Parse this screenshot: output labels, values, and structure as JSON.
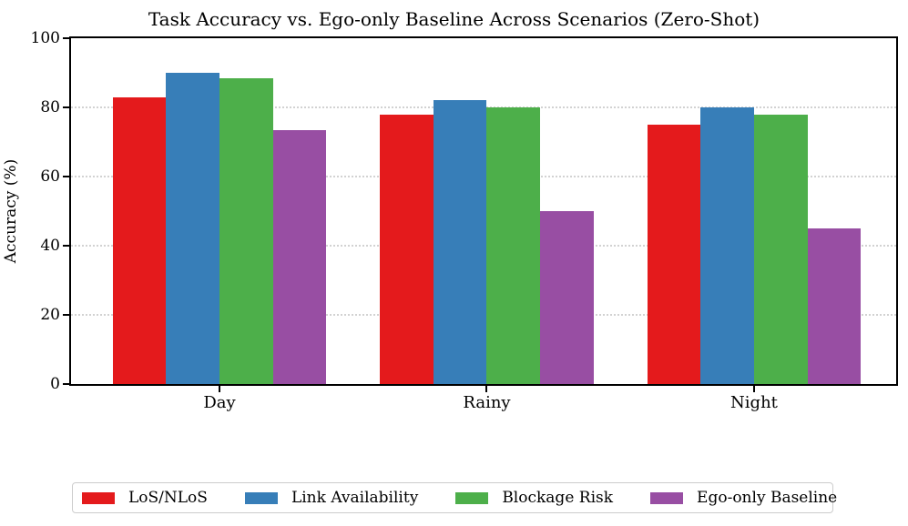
{
  "chart_data": {
    "type": "bar",
    "title": "Task Accuracy vs. Ego-only Baseline Across Scenarios (Zero-Shot)",
    "xlabel": "",
    "ylabel": "Accuracy (%)",
    "categories": [
      "Day",
      "Rainy",
      "Night"
    ],
    "series": [
      {
        "name": "LoS/NLoS",
        "color": "#e41a1c",
        "values": [
          83,
          78,
          75
        ]
      },
      {
        "name": "Link Availability",
        "color": "#377eb8",
        "values": [
          90,
          82,
          80
        ]
      },
      {
        "name": "Blockage Risk",
        "color": "#4daf4a",
        "values": [
          88.5,
          80,
          78
        ]
      },
      {
        "name": "Ego-only Baseline",
        "color": "#984ea3",
        "values": [
          73.5,
          50,
          45
        ]
      }
    ],
    "ylim": [
      0,
      100
    ],
    "yticks": [
      0,
      20,
      40,
      60,
      80,
      100
    ],
    "grid": "horizontal-dotted",
    "legend_position": "bottom",
    "axis_color": "#000000",
    "grid_color": "#d2d2d2",
    "background_color": "#ffffff"
  }
}
